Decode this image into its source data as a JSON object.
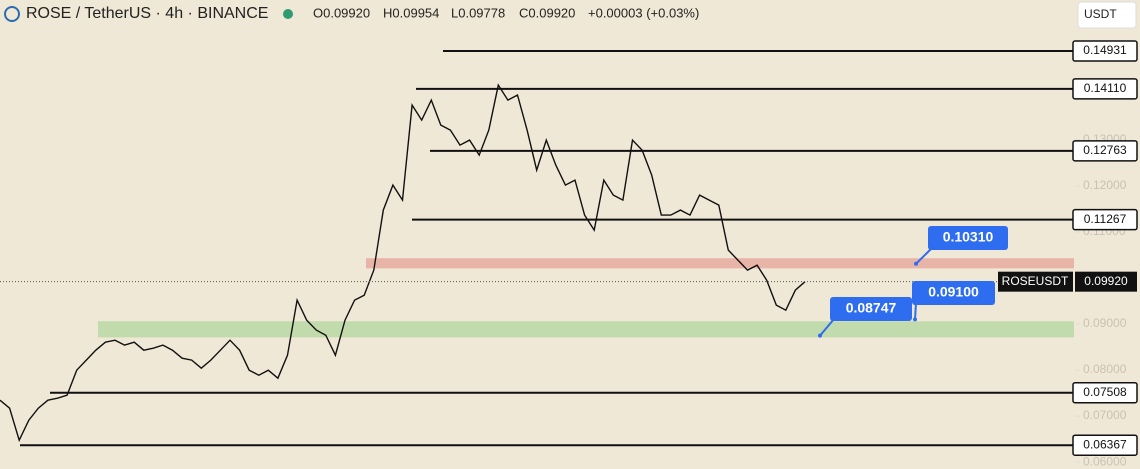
{
  "header": {
    "symbol": "ROSE / TetherUS · 4h · BINANCE",
    "ohlc": [
      "O0.09920",
      "H0.09954",
      "L0.09778",
      "C0.09920",
      "+0.00003 (+0.03%)"
    ],
    "currency": "USDT"
  },
  "chart_data": {
    "type": "line",
    "color": "#111111",
    "values": [
      0.07345,
      0.07171,
      0.06476,
      0.0691,
      0.07171,
      0.07345,
      0.07389,
      0.07454,
      0.07997,
      0.08215,
      0.08432,
      0.08606,
      0.08649,
      0.08541,
      0.08606,
      0.08432,
      0.08475,
      0.08541,
      0.08432,
      0.08258,
      0.08215,
      0.08041,
      0.08215,
      0.08432,
      0.08649,
      0.08432,
      0.07997,
      0.07889,
      0.07997,
      0.07823,
      0.08323,
      0.09519,
      0.09084,
      0.08867,
      0.08758,
      0.08323,
      0.09084,
      0.09519,
      0.09627,
      0.10171,
      0.11475,
      0.12018,
      0.11692,
      0.13757,
      0.13431,
      0.13866,
      0.13323,
      0.13214,
      0.12888,
      0.12996,
      0.1267,
      0.13214,
      0.14192,
      0.13866,
      0.13975,
      0.13214,
      0.12344,
      0.12996,
      0.12453,
      0.12018,
      0.12127,
      0.11366,
      0.1104,
      0.12127,
      0.11801,
      0.11692,
      0.12996,
      0.12779,
      0.12236,
      0.11366,
      0.11366,
      0.11475,
      0.11366,
      0.11801,
      0.11692,
      0.11584,
      0.10606,
      0.10388,
      0.10171,
      0.10279,
      0.09953,
      0.0941,
      0.09301,
      0.09736,
      0.0992
    ],
    "ylim": [
      0.0585,
      0.1604
    ],
    "yticks": [
      {
        "value": 0.06,
        "label": "0.06000"
      },
      {
        "value": 0.07,
        "label": "0.07000"
      },
      {
        "value": 0.08,
        "label": "0.08000"
      },
      {
        "value": 0.09,
        "label": "0.09000"
      },
      {
        "value": 0.11,
        "label": "0.11000"
      },
      {
        "value": 0.12,
        "label": "0.12000"
      },
      {
        "value": 0.13,
        "label": "0.13000"
      }
    ],
    "levels": [
      0.14931,
      {
        "value": 0.1411,
        "label": "0.14110"
      },
      0.12763,
      0.11267,
      0.07508,
      0.06367
    ],
    "zones": [
      {
        "low": 0.1021,
        "high": 0.1043,
        "color": "#e8aaa0"
      },
      {
        "low": 0.0871,
        "high": 0.0906,
        "color": "#b9d8a4"
      }
    ],
    "last_price": {
      "name": "ROSEUSDT",
      "value": 0.0992,
      "label": "0.09920"
    },
    "callouts": [
      {
        "value": 0.1031,
        "label": "0.10310"
      },
      {
        "value": 0.091,
        "label": "0.09100"
      },
      {
        "value": 0.08747,
        "label": "0.08747"
      }
    ]
  }
}
